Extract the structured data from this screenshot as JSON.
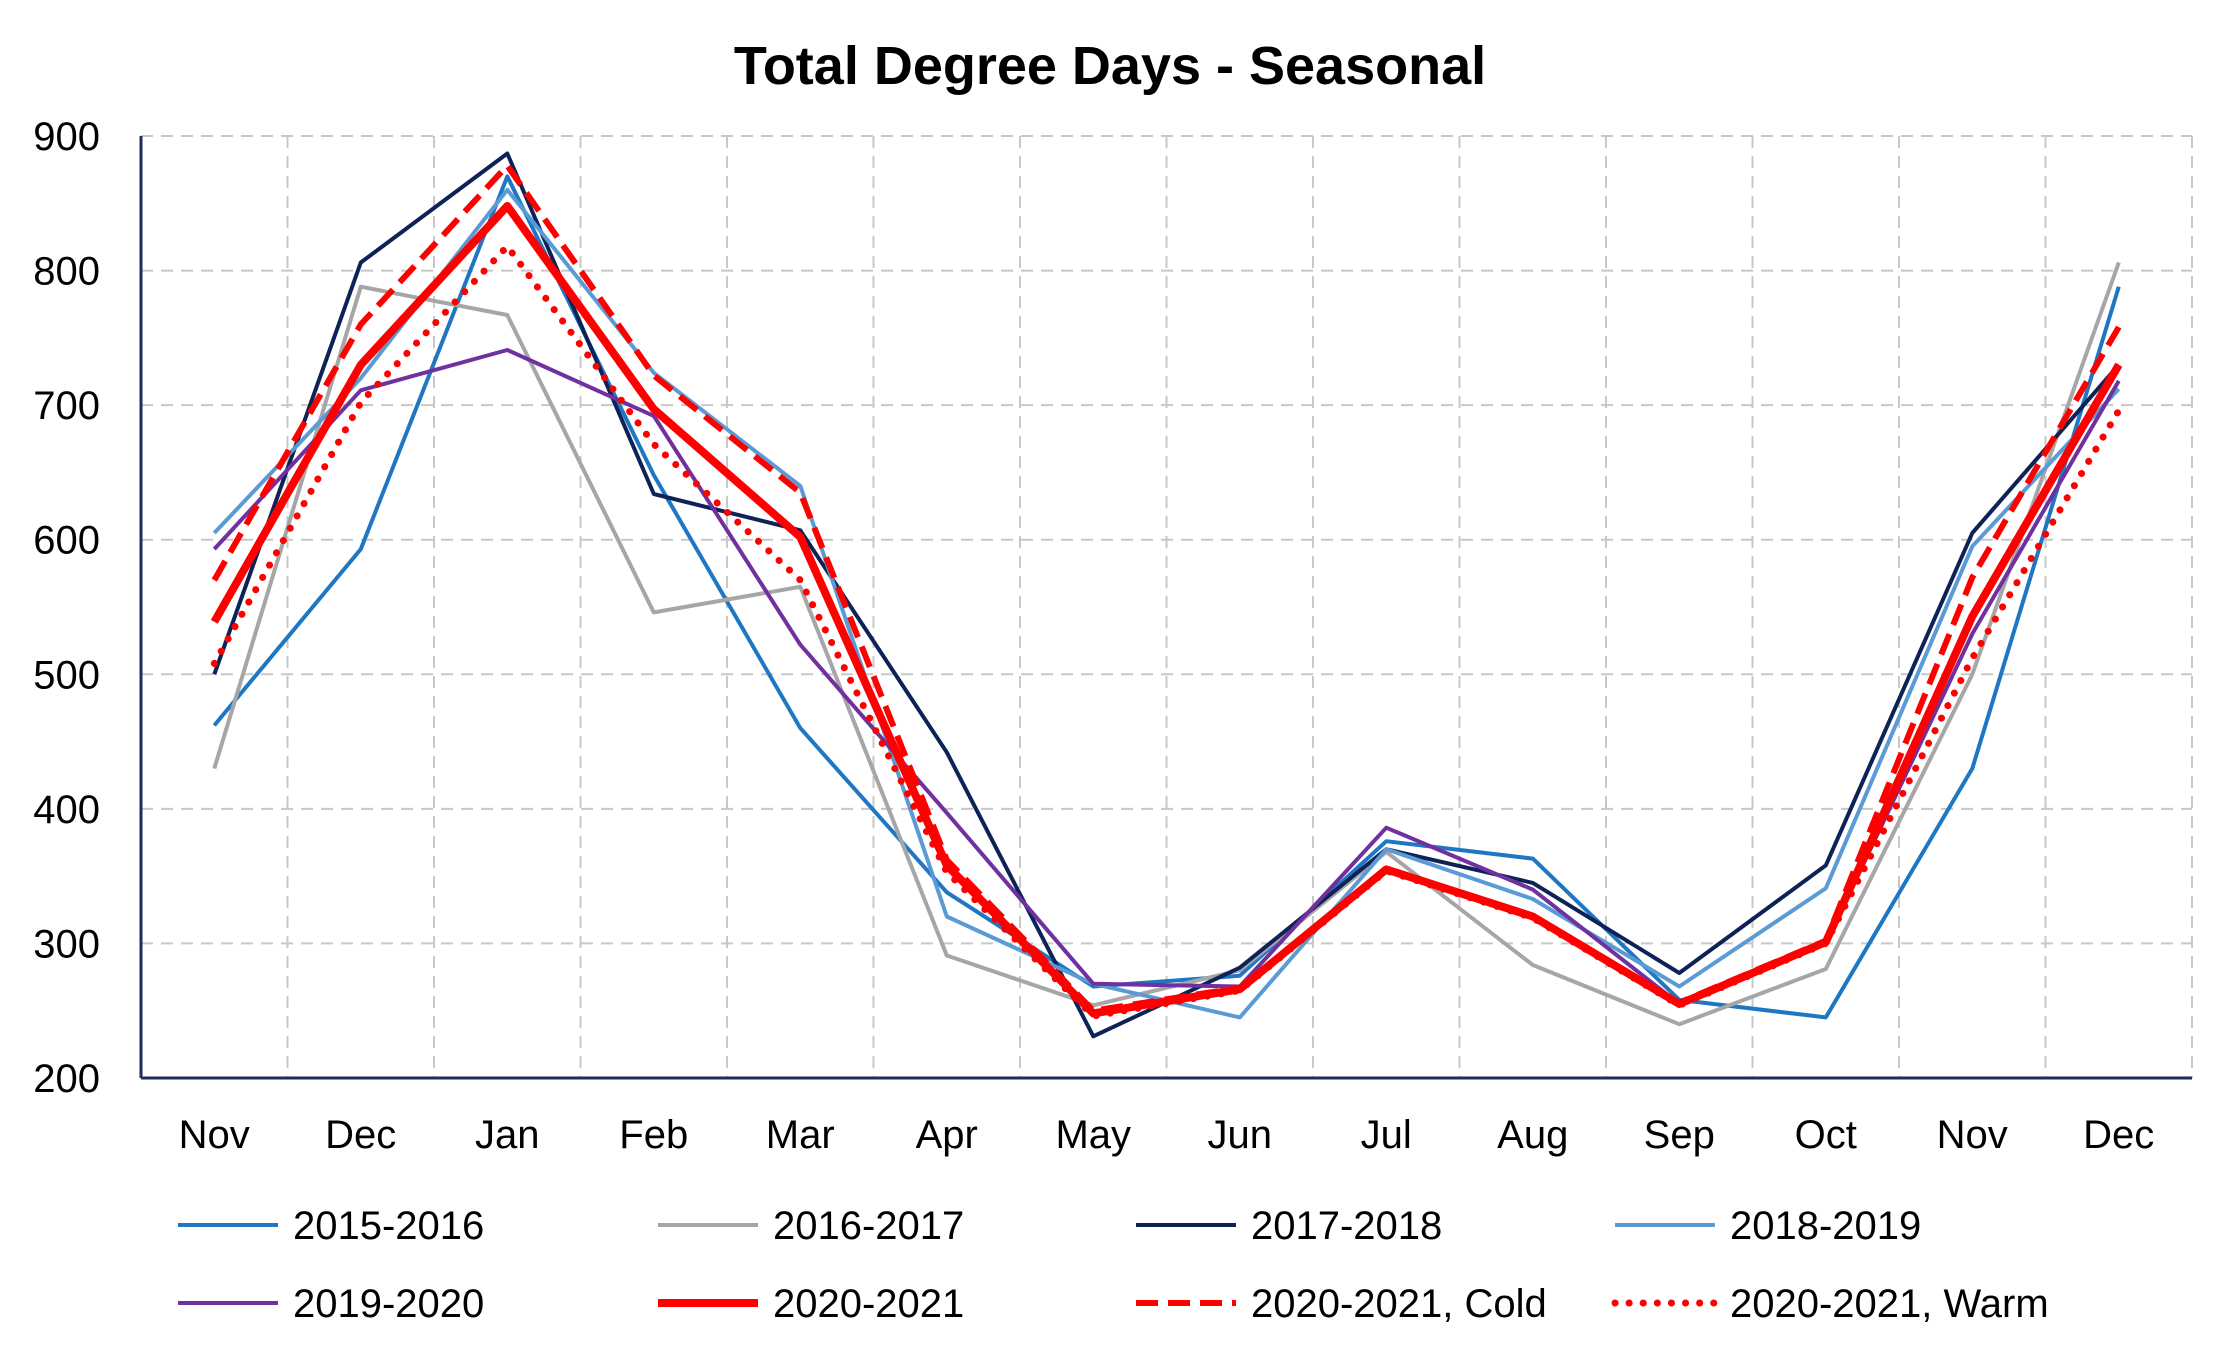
{
  "chart_data": {
    "type": "line",
    "title": "Total Degree Days - Seasonal",
    "xlabel": "",
    "ylabel": "",
    "ylim": [
      200,
      900
    ],
    "yticks": [
      200,
      300,
      400,
      500,
      600,
      700,
      800,
      900
    ],
    "grid": true,
    "legend_position": "bottom",
    "categories": [
      "Nov",
      "Dec",
      "Jan",
      "Feb",
      "Mar",
      "Apr",
      "May",
      "Jun",
      "Jul",
      "Aug",
      "Sep",
      "Oct",
      "Nov",
      "Dec"
    ],
    "series": [
      {
        "name": "2015-2016",
        "color": "#1f77c4",
        "style": "solid",
        "width": 4,
        "values": [
          462,
          593,
          870,
          648,
          460,
          338,
          268,
          276,
          376,
          363,
          258,
          245,
          430,
          788
        ]
      },
      {
        "name": "2016-2017",
        "color": "#a6a6a6",
        "style": "solid",
        "width": 4,
        "values": [
          430,
          788,
          767,
          546,
          565,
          291,
          254,
          280,
          368,
          284,
          240,
          281,
          500,
          806
        ]
      },
      {
        "name": "2017-2018",
        "color": "#0d2257",
        "style": "solid",
        "width": 4,
        "values": [
          500,
          806,
          887,
          634,
          607,
          442,
          231,
          282,
          370,
          345,
          278,
          358,
          605,
          730
        ]
      },
      {
        "name": "2018-2019",
        "color": "#5b9bd5",
        "style": "solid",
        "width": 4,
        "values": [
          605,
          720,
          860,
          724,
          640,
          320,
          270,
          245,
          370,
          333,
          268,
          341,
          595,
          712
        ]
      },
      {
        "name": "2019-2020",
        "color": "#7030a0",
        "style": "solid",
        "width": 4,
        "values": [
          593,
          711,
          741,
          692,
          522,
          397,
          270,
          268,
          386,
          340,
          255,
          300,
          530,
          718
        ]
      },
      {
        "name": "2020-2021",
        "color": "#ff0000",
        "style": "solid",
        "width": 8,
        "values": [
          539,
          730,
          848,
          697,
          602,
          358,
          248,
          266,
          355,
          320,
          255,
          301,
          543,
          730
        ]
      },
      {
        "name": "2020-2021, Cold",
        "color": "#ff0000",
        "style": "dashed",
        "width": 6,
        "values": [
          570,
          760,
          878,
          722,
          635,
          362,
          250,
          267,
          355,
          320,
          256,
          302,
          572,
          758
        ]
      },
      {
        "name": "2020-2021, Warm",
        "color": "#ff0000",
        "style": "dotted",
        "width": 7,
        "values": [
          508,
          702,
          818,
          671,
          570,
          353,
          246,
          265,
          354,
          319,
          254,
          300,
          512,
          696
        ]
      }
    ]
  }
}
